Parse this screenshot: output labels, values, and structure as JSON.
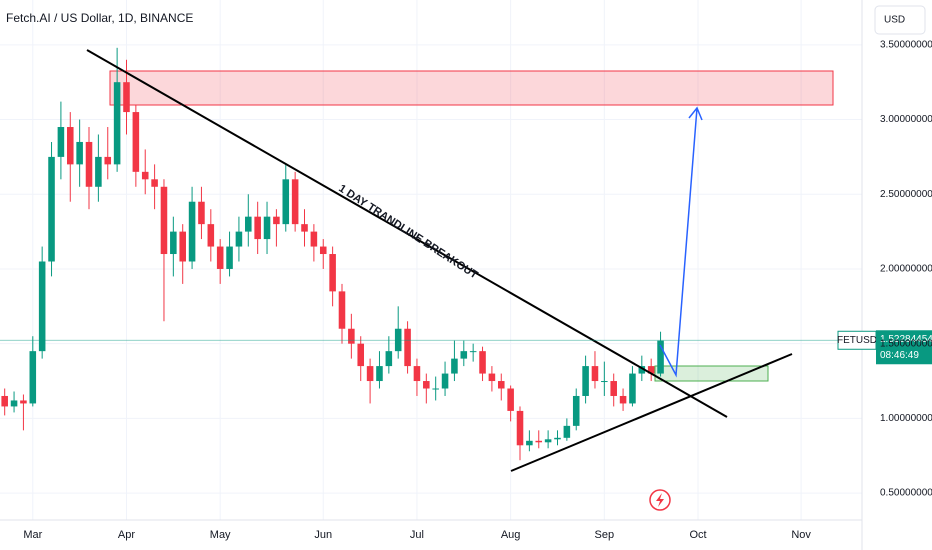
{
  "chart_data": {
    "type": "candlestick",
    "title": "Fetch.AI / US Dollar, 1D, BINANCE",
    "currency": "USD",
    "symbol": "FETUSD",
    "last_price": 1.52284454,
    "countdown": "08:46:49",
    "annotation": "1 DAY TRANDLINE BREAKOUT",
    "up_color": "#089981",
    "down_color": "#f23645",
    "grid": true,
    "ylim": [
      0.32,
      3.8
    ],
    "yticks": [
      {
        "value": 0.5,
        "label": "0.50000000"
      },
      {
        "value": 1.0,
        "label": "1.00000000"
      },
      {
        "value": 1.5,
        "label": "1.50000000"
      },
      {
        "value": 2.0,
        "label": "2.00000000"
      },
      {
        "value": 2.5,
        "label": "2.50000000"
      },
      {
        "value": 3.0,
        "label": "3.00000000"
      },
      {
        "value": 3.5,
        "label": "3.50000000"
      }
    ],
    "categories": [
      null,
      null,
      null,
      "Mar",
      null,
      null,
      null,
      null,
      null,
      null,
      null,
      null,
      null,
      "Apr",
      null,
      null,
      null,
      null,
      null,
      null,
      null,
      null,
      null,
      "May",
      null,
      null,
      null,
      null,
      null,
      null,
      null,
      null,
      null,
      null,
      "Jun",
      null,
      null,
      null,
      null,
      null,
      null,
      null,
      null,
      null,
      "Jul",
      null,
      null,
      null,
      null,
      null,
      null,
      null,
      null,
      null,
      "Aug",
      null,
      null,
      null,
      null,
      null,
      null,
      null,
      null,
      null,
      "Sep",
      null,
      null,
      null,
      null,
      null,
      null,
      null,
      null,
      null,
      "Oct",
      null,
      null,
      null,
      null,
      null,
      null,
      null,
      null,
      null,
      null,
      "Nov",
      null,
      null,
      null,
      null,
      null,
      null
    ],
    "ohlc": [
      [
        1.15,
        1.2,
        1.02,
        1.08
      ],
      [
        1.08,
        1.18,
        1.04,
        1.12
      ],
      [
        1.12,
        1.16,
        0.92,
        1.1
      ],
      [
        1.1,
        1.55,
        1.08,
        1.45
      ],
      [
        1.45,
        2.15,
        1.4,
        2.05
      ],
      [
        2.05,
        2.85,
        1.95,
        2.75
      ],
      [
        2.75,
        3.12,
        2.6,
        2.95
      ],
      [
        2.95,
        3.05,
        2.45,
        2.7
      ],
      [
        2.7,
        3.0,
        2.55,
        2.85
      ],
      [
        2.85,
        2.95,
        2.4,
        2.55
      ],
      [
        2.55,
        2.9,
        2.45,
        2.75
      ],
      [
        2.75,
        2.95,
        2.6,
        2.7
      ],
      [
        2.7,
        3.48,
        2.65,
        3.25
      ],
      [
        3.25,
        3.4,
        2.9,
        3.05
      ],
      [
        3.05,
        3.1,
        2.55,
        2.65
      ],
      [
        2.65,
        2.8,
        2.5,
        2.6
      ],
      [
        2.6,
        2.7,
        2.4,
        2.55
      ],
      [
        2.55,
        2.6,
        1.65,
        2.1
      ],
      [
        2.1,
        2.35,
        1.95,
        2.25
      ],
      [
        2.25,
        2.3,
        1.9,
        2.05
      ],
      [
        2.05,
        2.55,
        2.0,
        2.45
      ],
      [
        2.45,
        2.55,
        2.2,
        2.3
      ],
      [
        2.3,
        2.4,
        2.05,
        2.15
      ],
      [
        2.15,
        2.2,
        1.9,
        2.0
      ],
      [
        2.0,
        2.25,
        1.95,
        2.15
      ],
      [
        2.15,
        2.35,
        2.05,
        2.25
      ],
      [
        2.25,
        2.5,
        2.15,
        2.35
      ],
      [
        2.35,
        2.45,
        2.1,
        2.2
      ],
      [
        2.2,
        2.45,
        2.1,
        2.35
      ],
      [
        2.35,
        2.4,
        2.15,
        2.3
      ],
      [
        2.3,
        2.7,
        2.25,
        2.6
      ],
      [
        2.6,
        2.65,
        2.25,
        2.3
      ],
      [
        2.3,
        2.4,
        2.15,
        2.25
      ],
      [
        2.25,
        2.3,
        2.05,
        2.15
      ],
      [
        2.15,
        2.2,
        2.0,
        2.1
      ],
      [
        2.1,
        2.15,
        1.75,
        1.85
      ],
      [
        1.85,
        1.9,
        1.5,
        1.6
      ],
      [
        1.6,
        1.7,
        1.4,
        1.5
      ],
      [
        1.5,
        1.55,
        1.25,
        1.35
      ],
      [
        1.35,
        1.4,
        1.1,
        1.25
      ],
      [
        1.25,
        1.45,
        1.2,
        1.35
      ],
      [
        1.35,
        1.55,
        1.3,
        1.45
      ],
      [
        1.45,
        1.75,
        1.4,
        1.6
      ],
      [
        1.6,
        1.65,
        1.3,
        1.35
      ],
      [
        1.35,
        1.4,
        1.15,
        1.25
      ],
      [
        1.25,
        1.3,
        1.1,
        1.2
      ],
      [
        1.2,
        1.28,
        1.12,
        1.2
      ],
      [
        1.2,
        1.38,
        1.15,
        1.3
      ],
      [
        1.3,
        1.52,
        1.25,
        1.4
      ],
      [
        1.4,
        1.52,
        1.35,
        1.45
      ],
      [
        1.45,
        1.5,
        1.38,
        1.45
      ],
      [
        1.45,
        1.48,
        1.25,
        1.3
      ],
      [
        1.3,
        1.35,
        1.18,
        1.25
      ],
      [
        1.25,
        1.3,
        1.12,
        1.2
      ],
      [
        1.2,
        1.22,
        0.98,
        1.05
      ],
      [
        1.05,
        1.08,
        0.72,
        0.82
      ],
      [
        0.82,
        0.92,
        0.78,
        0.85
      ],
      [
        0.85,
        0.92,
        0.8,
        0.84
      ],
      [
        0.84,
        0.92,
        0.8,
        0.86
      ],
      [
        0.86,
        0.92,
        0.82,
        0.87
      ],
      [
        0.87,
        1.0,
        0.85,
        0.95
      ],
      [
        0.95,
        1.2,
        0.92,
        1.15
      ],
      [
        1.15,
        1.42,
        1.1,
        1.35
      ],
      [
        1.35,
        1.45,
        1.2,
        1.25
      ],
      [
        1.25,
        1.38,
        1.15,
        1.25
      ],
      [
        1.25,
        1.3,
        1.08,
        1.15
      ],
      [
        1.15,
        1.2,
        1.05,
        1.1
      ],
      [
        1.1,
        1.35,
        1.08,
        1.3
      ],
      [
        1.3,
        1.42,
        1.25,
        1.35
      ],
      [
        1.35,
        1.4,
        1.25,
        1.3
      ],
      [
        1.3,
        1.58,
        1.28,
        1.52
      ],
      null,
      null,
      null,
      null,
      null,
      null,
      null,
      null,
      null,
      null,
      null,
      null,
      null,
      null,
      null,
      null,
      null,
      null,
      null,
      null,
      null
    ]
  }
}
